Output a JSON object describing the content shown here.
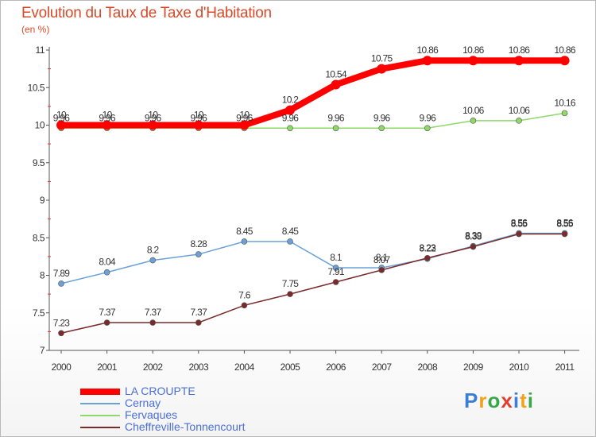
{
  "title": "Evolution du Taux de Taxe d'Habitation",
  "subtitle": "(en %)",
  "logo": {
    "text": "Proxiti",
    "colors": [
      "#3a7fd5",
      "#f0a31c",
      "#3aa64a",
      "#e23c2c",
      "#3a7fd5",
      "#f0a31c",
      "#3aa64a"
    ]
  },
  "chart_data": {
    "type": "line",
    "x": [
      "2000",
      "2001",
      "2002",
      "2003",
      "2004",
      "2005",
      "2006",
      "2007",
      "2008",
      "2009",
      "2010",
      "2011"
    ],
    "ylim": [
      7,
      11
    ],
    "yticks": [
      "7",
      "7.5",
      "8",
      "8.5",
      "9",
      "9.5",
      "10",
      "10.5",
      "11"
    ],
    "ytick_values": [
      7,
      7.5,
      8,
      8.5,
      9,
      9.5,
      10,
      10.5,
      11
    ],
    "grid": false,
    "legend_placement": "bottom-left",
    "series": [
      {
        "name": "LA CROUPTE",
        "color": "#ff0000",
        "values": [
          10,
          10,
          10,
          10,
          10,
          10.2,
          10.54,
          10.75,
          10.86,
          10.86,
          10.86,
          10.86
        ],
        "labels": [
          "10",
          "10",
          "10",
          "10",
          "10",
          "10.2",
          "10.54",
          "10.75",
          "10.86",
          "10.86",
          "10.86",
          "10.86"
        ]
      },
      {
        "name": "Cernay",
        "color": "#6aa2d8",
        "values": [
          7.89,
          8.04,
          8.2,
          8.28,
          8.45,
          8.45,
          8.1,
          8.1,
          8.22,
          8.39,
          8.56,
          8.56
        ],
        "labels": [
          "7.89",
          "8.04",
          "8.2",
          "8.28",
          "8.45",
          "8.45",
          "8.1",
          "8.1",
          "8.22",
          "8.39",
          "8.56",
          "8.56"
        ]
      },
      {
        "name": "Fervaques",
        "color": "#8fd86a",
        "values": [
          9.96,
          9.96,
          9.96,
          9.96,
          9.96,
          9.96,
          9.96,
          9.96,
          9.96,
          10.06,
          10.06,
          10.16
        ],
        "labels": [
          "9.96",
          "9.96",
          "9.96",
          "9.96",
          "9.96",
          "9.96",
          "9.96",
          "9.96",
          "9.96",
          "10.06",
          "10.06",
          "10.16"
        ]
      },
      {
        "name": "Cheffreville-Tonnencourt",
        "color": "#7a2a2a",
        "values": [
          7.23,
          7.37,
          7.37,
          7.37,
          7.6,
          7.75,
          7.91,
          8.07,
          8.23,
          8.38,
          8.55,
          8.55
        ],
        "labels": [
          "7.23",
          "7.37",
          "7.37",
          "7.37",
          "7.6",
          "7.75",
          "7.91",
          "8.07",
          "8.23",
          "8.38",
          "8.55",
          "8.55"
        ]
      }
    ]
  }
}
